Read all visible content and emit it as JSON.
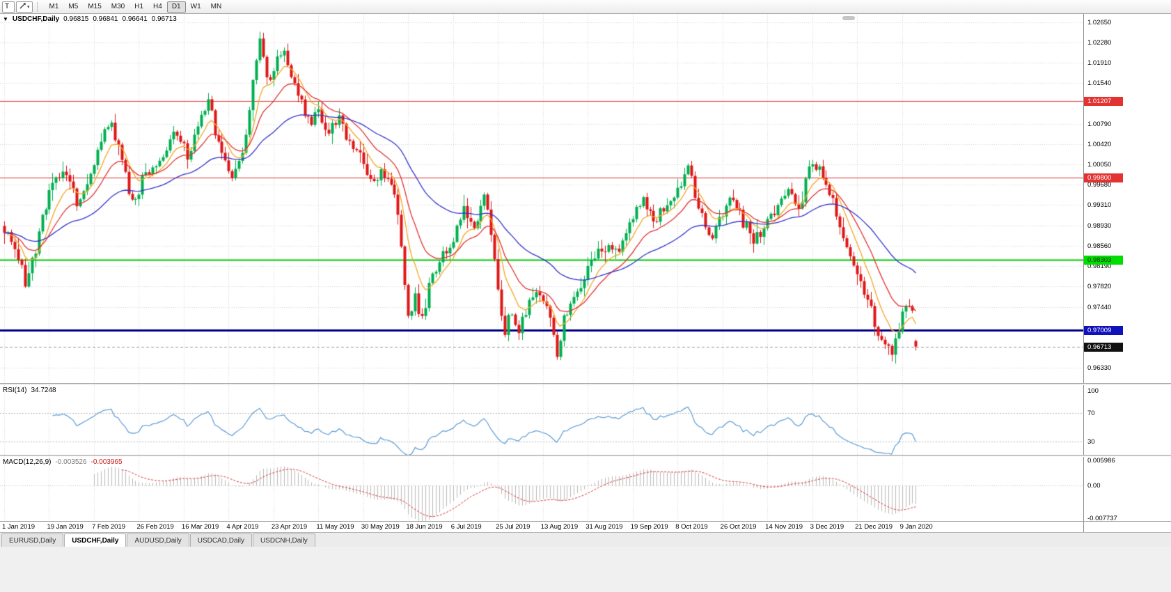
{
  "toolbar": {
    "text_tool_label": "T",
    "drawing_dropdown_caret": "▾",
    "timeframes": [
      {
        "label": "M1",
        "active": false
      },
      {
        "label": "M5",
        "active": false
      },
      {
        "label": "M15",
        "active": false
      },
      {
        "label": "M30",
        "active": false
      },
      {
        "label": "H1",
        "active": false
      },
      {
        "label": "H4",
        "active": false
      },
      {
        "label": "D1",
        "active": true
      },
      {
        "label": "W1",
        "active": false
      },
      {
        "label": "MN",
        "active": false
      }
    ]
  },
  "chart": {
    "header": {
      "collapse_icon": "▼",
      "title": "USDCHF,Daily",
      "open": "0.96815",
      "high": "0.96841",
      "low": "0.96641",
      "close": "0.96713"
    },
    "price_axis": {
      "labels": [
        "1.02650",
        "1.02280",
        "1.01910",
        "1.01540",
        "1.00790",
        "1.00420",
        "1.00050",
        "0.99680",
        "0.99310",
        "0.98930",
        "0.98560",
        "0.98190",
        "0.97820",
        "0.97440",
        "0.96330"
      ],
      "badges": [
        {
          "value": "1.01207",
          "price": 1.01207,
          "bg": "#e23232",
          "fg": "#ffffff",
          "name": "resistance-1"
        },
        {
          "value": "0.99800",
          "price": 0.998,
          "bg": "#e23232",
          "fg": "#ffffff",
          "name": "resistance-2"
        },
        {
          "value": "0.98303",
          "price": 0.98303,
          "bg": "#00dd00",
          "fg": "#003300",
          "name": "support-green"
        },
        {
          "value": "0.97009",
          "price": 0.97009,
          "bg": "#1111bb",
          "fg": "#ffffff",
          "name": "support-blue"
        },
        {
          "value": "0.96713",
          "price": 0.96713,
          "bg": "#111111",
          "fg": "#ffffff",
          "name": "last-price"
        }
      ]
    },
    "hlines": [
      {
        "price": 1.01207,
        "color": "#e23232",
        "width": 1
      },
      {
        "price": 0.998,
        "color": "#e23232",
        "width": 1
      },
      {
        "price": 0.98303,
        "color": "#00cc00",
        "width": 2
      },
      {
        "price": 0.97009,
        "color": "#000088",
        "width": 3
      }
    ],
    "date_axis": [
      "1 Jan 2019",
      "19 Jan 2019",
      "7 Feb 2019",
      "26 Feb 2019",
      "16 Mar 2019",
      "4 Apr 2019",
      "23 Apr 2019",
      "11 May 2019",
      "30 May 2019",
      "18 Jun 2019",
      "6 Jul 2019",
      "25 Jul 2019",
      "13 Aug 2019",
      "31 Aug 2019",
      "19 Sep 2019",
      "8 Oct 2019",
      "26 Oct 2019",
      "14 Nov 2019",
      "3 Dec 2019",
      "21 Dec 2019",
      "9 Jan 2020"
    ]
  },
  "rsi": {
    "label": "RSI(14)",
    "value": "34.7248",
    "line_color": "#5b9bd5",
    "levels": [
      70,
      30
    ],
    "axis": [
      {
        "label": "100",
        "v": 100
      },
      {
        "label": "70",
        "v": 70
      },
      {
        "label": "30",
        "v": 30
      }
    ]
  },
  "macd": {
    "label": "MACD(12,26,9)",
    "value_main": "-0.003526",
    "value_signal": "-0.003965",
    "histogram_color": "#b9b9b9",
    "signal_color": "#d93030",
    "axis": [
      {
        "label": "0.005986",
        "v": 0.005986
      },
      {
        "label": "0.00",
        "v": 0
      },
      {
        "label": "-0.007737",
        "v": -0.007737
      }
    ]
  },
  "tabs": [
    {
      "label": "EURUSD,Daily",
      "active": false
    },
    {
      "label": "USDCHF,Daily",
      "active": true
    },
    {
      "label": "AUDUSD,Daily",
      "active": false
    },
    {
      "label": "USDCAD,Daily",
      "active": false
    },
    {
      "label": "USDCNH,Daily",
      "active": false
    }
  ],
  "chart_data": {
    "type": "candlestick",
    "symbol": "USDCHF",
    "timeframe": "Daily",
    "candle_count": 265,
    "visible_range": {
      "price_min": 0.96045,
      "price_max": 1.028
    },
    "last": {
      "open": 0.96815,
      "high": 0.96841,
      "low": 0.96641,
      "close": 0.96713
    },
    "style": {
      "up_color": "#00b050",
      "down_color": "#e01616",
      "grid_color": "#d6d6d6",
      "last_price_line": "#9a9a9a"
    },
    "indicators_ma": [
      {
        "period": 8,
        "color": "#f5a623"
      },
      {
        "period": 17,
        "color": "#e23232"
      },
      {
        "period": 45,
        "color": "#3333cc"
      }
    ],
    "price_path": [
      [
        0,
        0.988
      ],
      [
        3,
        0.9855
      ],
      [
        6,
        0.979
      ],
      [
        9,
        0.985
      ],
      [
        13,
        0.995
      ],
      [
        17,
        0.999
      ],
      [
        21,
        0.9935
      ],
      [
        26,
        1.0005
      ],
      [
        30,
        1.0085
      ],
      [
        33,
        1.005
      ],
      [
        37,
        0.993
      ],
      [
        41,
        0.999
      ],
      [
        46,
        1.0025
      ],
      [
        50,
        1.007
      ],
      [
        53,
        1.0015
      ],
      [
        56,
        1.007
      ],
      [
        59,
        1.0118
      ],
      [
        62,
        1.004
      ],
      [
        65,
        0.9985
      ],
      [
        68,
        1.0
      ],
      [
        70,
        1.006
      ],
      [
        72,
        1.016
      ],
      [
        74,
        1.0225
      ],
      [
        77,
        1.015
      ],
      [
        80,
        1.021
      ],
      [
        82,
        1.019
      ],
      [
        85,
        1.0135
      ],
      [
        88,
        1.008
      ],
      [
        91,
        1.011
      ],
      [
        94,
        1.006
      ],
      [
        97,
        1.009
      ],
      [
        100,
        1.004
      ],
      [
        104,
        1.0005
      ],
      [
        107,
        0.997
      ],
      [
        110,
        0.999
      ],
      [
        113,
        0.994
      ],
      [
        115,
        0.986
      ],
      [
        117,
        0.973
      ],
      [
        119,
        0.976
      ],
      [
        121,
        0.9725
      ],
      [
        124,
        0.98
      ],
      [
        127,
        0.9845
      ],
      [
        130,
        0.987
      ],
      [
        133,
        0.992
      ],
      [
        136,
        0.989
      ],
      [
        139,
        0.996
      ],
      [
        141,
        0.987
      ],
      [
        143,
        0.977
      ],
      [
        145,
        0.9705
      ],
      [
        147,
        0.973
      ],
      [
        149,
        0.9695
      ],
      [
        152,
        0.9755
      ],
      [
        155,
        0.9775
      ],
      [
        158,
        0.973
      ],
      [
        160,
        0.9663
      ],
      [
        162,
        0.972
      ],
      [
        165,
        0.9755
      ],
      [
        169,
        0.9815
      ],
      [
        173,
        0.9855
      ],
      [
        177,
        0.984
      ],
      [
        180,
        0.988
      ],
      [
        182,
        0.9905
      ],
      [
        185,
        0.9935
      ],
      [
        188,
        0.9895
      ],
      [
        191,
        0.993
      ],
      [
        195,
        0.9965
      ],
      [
        198,
        0.999
      ],
      [
        201,
        0.9935
      ],
      [
        204,
        0.987
      ],
      [
        208,
        0.9905
      ],
      [
        211,
        0.9945
      ],
      [
        214,
        0.99
      ],
      [
        217,
        0.987
      ],
      [
        221,
        0.9895
      ],
      [
        224,
        0.993
      ],
      [
        227,
        0.9955
      ],
      [
        230,
        0.9925
      ],
      [
        233,
        0.999
      ],
      [
        236,
        1.001
      ],
      [
        239,
        0.9955
      ],
      [
        242,
        0.9895
      ],
      [
        245,
        0.984
      ],
      [
        248,
        0.979
      ],
      [
        251,
        0.9735
      ],
      [
        253,
        0.97
      ],
      [
        255,
        0.9665
      ],
      [
        257,
        0.9655
      ],
      [
        259,
        0.9705
      ],
      [
        261,
        0.974
      ],
      [
        263,
        0.9725
      ],
      [
        264,
        0.96713
      ]
    ]
  }
}
